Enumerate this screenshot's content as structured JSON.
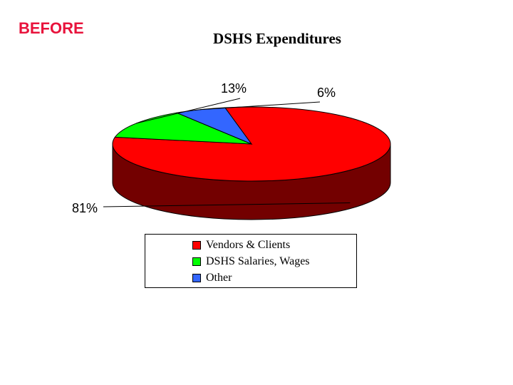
{
  "slide": {
    "tag": "BEFORE",
    "tag_color": "#e8133c"
  },
  "chart_data": {
    "type": "pie",
    "title": "DSHS Expenditures",
    "style": "3d",
    "categories": [
      "Vendors & Clients",
      "DSHS Salaries, Wages",
      "Other"
    ],
    "values": [
      81,
      13,
      6
    ],
    "value_labels": [
      "81%",
      "13%",
      "6%"
    ],
    "colors": [
      "#ff0000",
      "#00ff00",
      "#3366ff"
    ],
    "legend": {
      "position": "bottom",
      "border": true
    }
  }
}
